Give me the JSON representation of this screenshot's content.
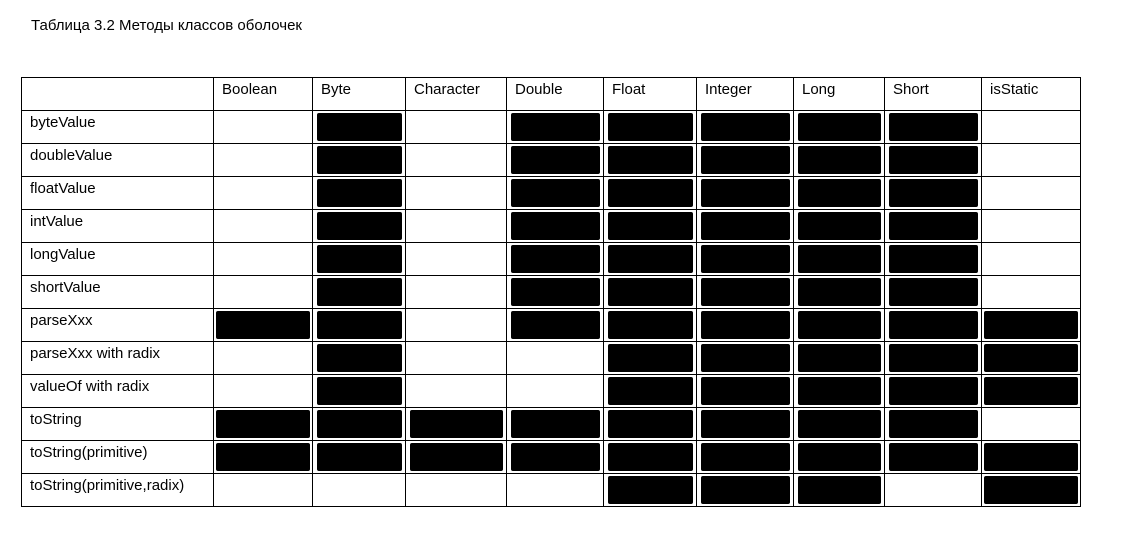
{
  "caption": "Таблица 3.2 Методы классов оболочек",
  "columns": [
    "Boolean",
    "Byte",
    "Character",
    "Double",
    "Float",
    "Integer",
    "Long",
    "Short",
    "isStatic"
  ],
  "legend_colors": {
    "filled": "#000000",
    "empty": "#ffffff"
  },
  "rows": [
    {
      "method": "byteValue",
      "cells": [
        0,
        1,
        0,
        1,
        1,
        1,
        1,
        1,
        0
      ]
    },
    {
      "method": "doubleValue",
      "cells": [
        0,
        1,
        0,
        1,
        1,
        1,
        1,
        1,
        0
      ]
    },
    {
      "method": "floatValue",
      "cells": [
        0,
        1,
        0,
        1,
        1,
        1,
        1,
        1,
        0
      ]
    },
    {
      "method": "intValue",
      "cells": [
        0,
        1,
        0,
        1,
        1,
        1,
        1,
        1,
        0
      ]
    },
    {
      "method": "longValue",
      "cells": [
        0,
        1,
        0,
        1,
        1,
        1,
        1,
        1,
        0
      ]
    },
    {
      "method": "shortValue",
      "cells": [
        0,
        1,
        0,
        1,
        1,
        1,
        1,
        1,
        0
      ]
    },
    {
      "method": "parseXxx",
      "cells": [
        1,
        1,
        0,
        1,
        1,
        1,
        1,
        1,
        1
      ]
    },
    {
      "method": "parseXxx with radix",
      "cells": [
        0,
        1,
        0,
        0,
        1,
        1,
        1,
        1,
        1
      ]
    },
    {
      "method": "valueOf with radix",
      "cells": [
        0,
        1,
        0,
        0,
        1,
        1,
        1,
        1,
        1
      ]
    },
    {
      "method": "toString",
      "cells": [
        1,
        1,
        1,
        1,
        1,
        1,
        1,
        1,
        0
      ]
    },
    {
      "method": "toString(primitive)",
      "cells": [
        1,
        1,
        1,
        1,
        1,
        1,
        1,
        1,
        1
      ]
    },
    {
      "method": "toString(primitive,radix)",
      "cells": [
        0,
        0,
        0,
        0,
        1,
        1,
        1,
        0,
        1
      ]
    }
  ]
}
